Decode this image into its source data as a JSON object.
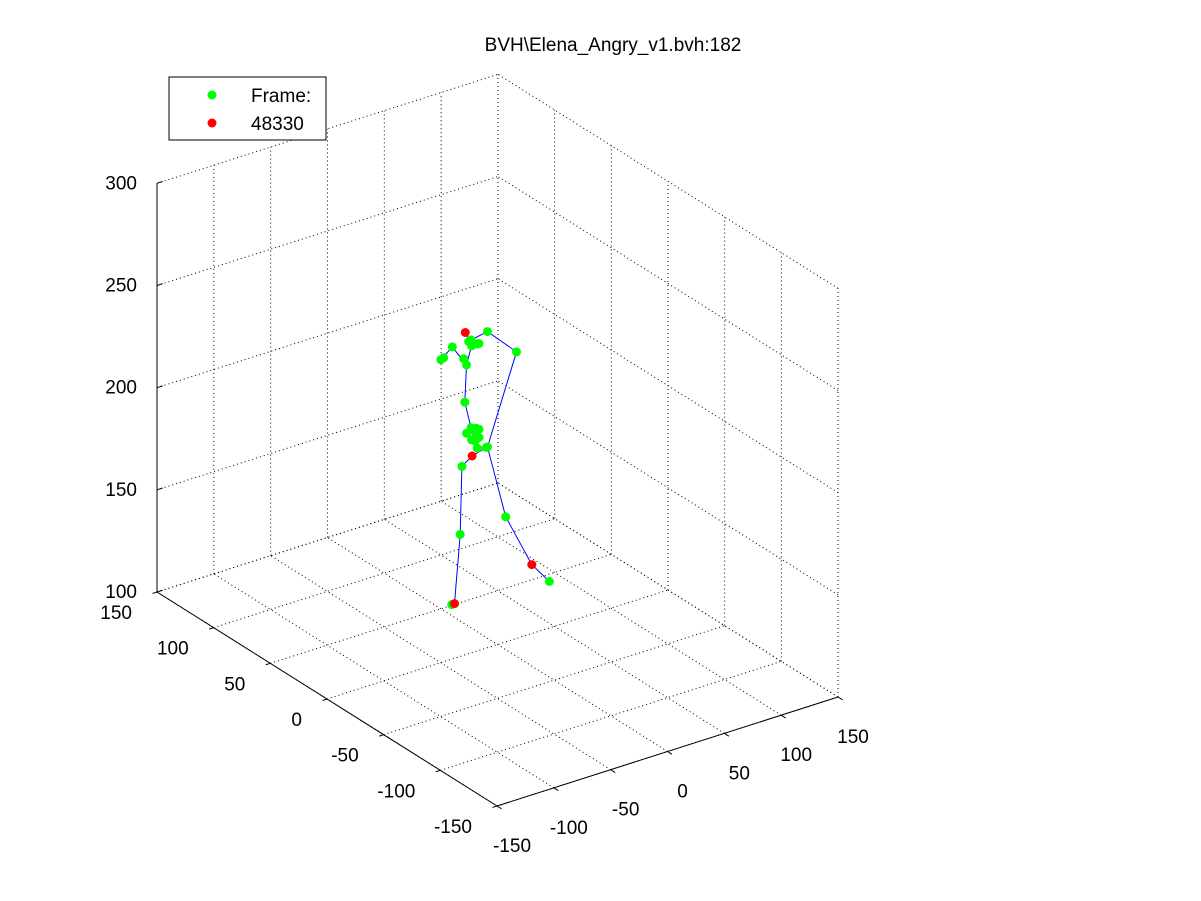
{
  "chart_data": {
    "type": "scatter",
    "title": "BVH\\Elena_Angry_v1.bvh:182",
    "xlabel": "",
    "ylabel": "",
    "zlabel": "",
    "x_ticks": [
      "-150",
      "-100",
      "-50",
      "0",
      "50",
      "100",
      "150"
    ],
    "y_ticks": [
      "-150",
      "-100",
      "-50",
      "0",
      "50",
      "100",
      "150"
    ],
    "z_ticks": [
      "100",
      "150",
      "200",
      "250",
      "300"
    ],
    "xlim": [
      -150,
      150
    ],
    "ylim": [
      -150,
      150
    ],
    "zlim": [
      100,
      300
    ],
    "grid": true,
    "legend_position": "top-left",
    "legend": [
      {
        "label": "Frame:",
        "color": "#00ff00"
      },
      {
        "label": "48330",
        "color": "#ff0000"
      }
    ],
    "line_color": "#0000ff",
    "series": [
      {
        "name": "Frame:",
        "color": "#00ff00",
        "points": [
          [
            17.5,
            65,
            214.5
          ],
          [
            15,
            65,
            214
          ],
          [
            25,
            65,
            218.5
          ],
          [
            37.5,
            65,
            207.5
          ],
          [
            41.5,
            65,
            219
          ],
          [
            56,
            65,
            220.5
          ],
          [
            81.5,
            65,
            206
          ],
          [
            44.5,
            65,
            174
          ],
          [
            46,
            65,
            175
          ],
          [
            46.5,
            65,
            173.5
          ],
          [
            48.5,
            65,
            174
          ],
          [
            48.5,
            65,
            170
          ],
          [
            45,
            65,
            169
          ],
          [
            42,
            65,
            170
          ],
          [
            47,
            65,
            165
          ],
          [
            55,
            65,
            164
          ],
          [
            56,
            65,
            164
          ],
          [
            33.5,
            65,
            158.5
          ],
          [
            32,
            65,
            125.5
          ],
          [
            24.5,
            65,
            92.5
          ],
          [
            72,
            65,
            127
          ],
          [
            110.5,
            65,
            88.5
          ],
          [
            42,
            65,
            216
          ],
          [
            47,
            65,
            216
          ],
          [
            48.5,
            65,
            216
          ],
          [
            35,
            65,
            211
          ],
          [
            39.5,
            65,
            218.5
          ],
          [
            36,
            65,
            189.5
          ],
          [
            41.5,
            65,
            176
          ],
          [
            37.5,
            65,
            174
          ]
        ]
      },
      {
        "name": "48330",
        "color": "#ff0000",
        "points": [
          [
            36.5,
            65,
            223.5
          ],
          [
            42.5,
            65,
            162
          ],
          [
            27,
            65,
            92.5
          ],
          [
            95,
            65,
            99.5
          ]
        ]
      }
    ],
    "skeleton_lines": [
      [
        [
          17.5,
          65,
          214.5
        ],
        [
          15,
          65,
          214
        ],
        [
          25,
          65,
          218.5
        ],
        [
          37.5,
          65,
          207.5
        ]
      ],
      [
        [
          42,
          65,
          216
        ],
        [
          41.5,
          65,
          219
        ],
        [
          56,
          65,
          220.5
        ],
        [
          81.5,
          65,
          206
        ],
        [
          56,
          65,
          164
        ]
      ],
      [
        [
          36.5,
          65,
          223.5
        ],
        [
          42,
          65,
          216
        ],
        [
          37.5,
          65,
          207.5
        ],
        [
          36,
          65,
          189.5
        ],
        [
          41.5,
          65,
          176
        ],
        [
          47,
          65,
          165
        ],
        [
          55,
          65,
          164
        ],
        [
          56,
          65,
          164
        ]
      ],
      [
        [
          56,
          65,
          164
        ],
        [
          42.5,
          65,
          162
        ],
        [
          33.5,
          65,
          158.5
        ],
        [
          32,
          65,
          125.5
        ],
        [
          27,
          65,
          92.5
        ],
        [
          24.5,
          65,
          92.5
        ]
      ],
      [
        [
          56,
          65,
          164
        ],
        [
          72,
          65,
          127
        ],
        [
          95,
          65,
          99.5
        ],
        [
          110.5,
          65,
          88.5
        ]
      ]
    ]
  }
}
